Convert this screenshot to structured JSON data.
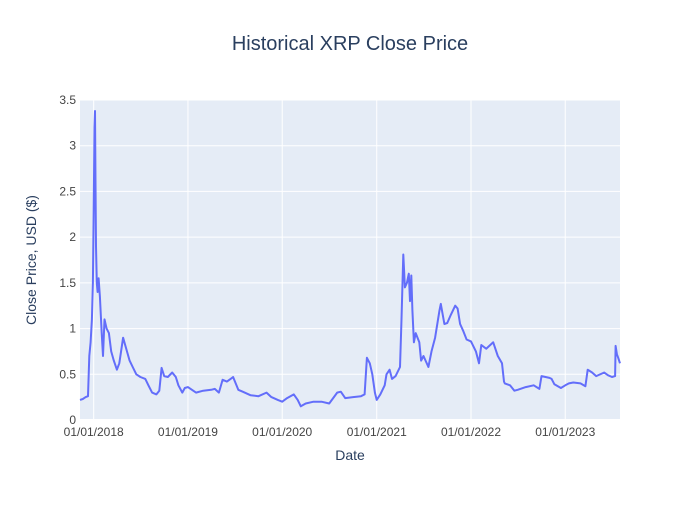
{
  "chart_data": {
    "type": "line",
    "title": "Historical XRP Close Price",
    "xlabel": "Date",
    "ylabel": "Close Price, USD ($)",
    "xlim": [
      "2017-11-09",
      "2023-08-01"
    ],
    "ylim": [
      0,
      3.5
    ],
    "x_ticks": [
      "01/01/2018",
      "01/01/2019",
      "01/01/2020",
      "01/01/2021",
      "01/01/2022",
      "01/01/2023"
    ],
    "x_tick_dates": [
      "2018-01-01",
      "2019-01-01",
      "2020-01-01",
      "2021-01-01",
      "2022-01-01",
      "2023-01-01"
    ],
    "y_ticks": [
      0,
      0.5,
      1,
      1.5,
      2,
      2.5,
      3,
      3.5
    ],
    "y_tick_labels": [
      "0",
      "0.5",
      "1",
      "1.5",
      "2",
      "2.5",
      "3",
      "3.5"
    ],
    "grid": true,
    "legend": "none",
    "colors": {
      "line": "#636efa",
      "plot_bg": "#e5ecf6",
      "grid": "#ffffff",
      "text": "#2a3f5f",
      "tick_text": "#444444"
    },
    "series": [
      {
        "x": [
          "2017-11-09",
          "2017-11-20",
          "2017-12-01",
          "2017-12-10",
          "2017-12-15",
          "2017-12-20",
          "2017-12-25",
          "2017-12-29",
          "2018-01-01",
          "2018-01-04",
          "2018-01-06",
          "2018-01-08",
          "2018-01-10",
          "2018-01-13",
          "2018-01-16",
          "2018-01-20",
          "2018-01-25",
          "2018-02-01",
          "2018-02-06",
          "2018-02-12",
          "2018-02-20",
          "2018-03-01",
          "2018-03-10",
          "2018-03-20",
          "2018-04-01",
          "2018-04-10",
          "2018-04-25",
          "2018-05-05",
          "2018-05-20",
          "2018-06-01",
          "2018-06-15",
          "2018-07-01",
          "2018-07-20",
          "2018-08-01",
          "2018-08-15",
          "2018-09-01",
          "2018-09-12",
          "2018-09-21",
          "2018-10-01",
          "2018-10-15",
          "2018-11-01",
          "2018-11-15",
          "2018-11-25",
          "2018-12-10",
          "2018-12-20",
          "2019-01-01",
          "2019-02-01",
          "2019-03-01",
          "2019-04-01",
          "2019-04-15",
          "2019-05-01",
          "2019-05-15",
          "2019-06-01",
          "2019-06-15",
          "2019-06-25",
          "2019-07-15",
          "2019-08-01",
          "2019-09-01",
          "2019-10-01",
          "2019-11-01",
          "2019-11-20",
          "2019-12-15",
          "2020-01-01",
          "2020-01-20",
          "2020-02-15",
          "2020-03-01",
          "2020-03-13",
          "2020-04-01",
          "2020-05-01",
          "2020-06-01",
          "2020-07-01",
          "2020-08-01",
          "2020-08-15",
          "2020-09-01",
          "2020-10-01",
          "2020-11-01",
          "2020-11-15",
          "2020-11-24",
          "2020-12-05",
          "2020-12-15",
          "2020-12-25",
          "2021-01-01",
          "2021-01-15",
          "2021-02-01",
          "2021-02-08",
          "2021-02-20",
          "2021-03-01",
          "2021-03-15",
          "2021-04-01",
          "2021-04-07",
          "2021-04-14",
          "2021-04-20",
          "2021-04-28",
          "2021-05-05",
          "2021-05-10",
          "2021-05-15",
          "2021-05-19",
          "2021-05-25",
          "2021-06-01",
          "2021-06-15",
          "2021-06-22",
          "2021-07-01",
          "2021-07-20",
          "2021-08-01",
          "2021-08-15",
          "2021-09-01",
          "2021-09-06",
          "2021-09-20",
          "2021-10-01",
          "2021-10-15",
          "2021-11-01",
          "2021-11-10",
          "2021-11-20",
          "2021-12-01",
          "2021-12-15",
          "2022-01-01",
          "2022-01-20",
          "2022-02-01",
          "2022-02-10",
          "2022-03-01",
          "2022-03-28",
          "2022-04-15",
          "2022-05-01",
          "2022-05-09",
          "2022-05-12",
          "2022-06-01",
          "2022-06-18",
          "2022-07-01",
          "2022-08-01",
          "2022-09-01",
          "2022-09-23",
          "2022-10-01",
          "2022-11-01",
          "2022-11-09",
          "2022-11-20",
          "2022-12-15",
          "2023-01-01",
          "2023-01-15",
          "2023-02-01",
          "2023-03-01",
          "2023-03-20",
          "2023-03-29",
          "2023-04-15",
          "2023-05-01",
          "2023-06-01",
          "2023-06-15",
          "2023-07-01",
          "2023-07-13",
          "2023-07-15",
          "2023-07-20",
          "2023-07-25",
          "2023-08-01"
        ],
        "y": [
          0.22,
          0.23,
          0.25,
          0.26,
          0.7,
          0.85,
          1.1,
          1.5,
          2.3,
          3.2,
          3.38,
          2.6,
          1.9,
          1.5,
          1.4,
          1.55,
          1.35,
          0.95,
          0.7,
          1.1,
          1.0,
          0.95,
          0.75,
          0.65,
          0.55,
          0.62,
          0.9,
          0.8,
          0.65,
          0.58,
          0.5,
          0.47,
          0.45,
          0.38,
          0.3,
          0.28,
          0.32,
          0.57,
          0.48,
          0.47,
          0.52,
          0.47,
          0.38,
          0.3,
          0.35,
          0.36,
          0.3,
          0.32,
          0.33,
          0.34,
          0.3,
          0.44,
          0.42,
          0.45,
          0.47,
          0.33,
          0.31,
          0.27,
          0.26,
          0.3,
          0.25,
          0.22,
          0.2,
          0.24,
          0.28,
          0.22,
          0.15,
          0.18,
          0.2,
          0.2,
          0.18,
          0.3,
          0.31,
          0.24,
          0.25,
          0.26,
          0.28,
          0.68,
          0.62,
          0.5,
          0.3,
          0.22,
          0.28,
          0.38,
          0.5,
          0.55,
          0.45,
          0.48,
          0.58,
          1.1,
          1.81,
          1.45,
          1.5,
          1.6,
          1.3,
          1.58,
          1.2,
          0.85,
          0.95,
          0.85,
          0.65,
          0.7,
          0.58,
          0.75,
          0.9,
          1.2,
          1.27,
          1.05,
          1.06,
          1.15,
          1.25,
          1.22,
          1.05,
          0.98,
          0.88,
          0.86,
          0.75,
          0.62,
          0.82,
          0.78,
          0.85,
          0.7,
          0.62,
          0.42,
          0.4,
          0.38,
          0.32,
          0.33,
          0.36,
          0.38,
          0.34,
          0.48,
          0.46,
          0.45,
          0.39,
          0.35,
          0.38,
          0.4,
          0.41,
          0.4,
          0.37,
          0.55,
          0.52,
          0.48,
          0.52,
          0.49,
          0.47,
          0.48,
          0.81,
          0.72,
          0.68,
          0.62
        ]
      }
    ]
  }
}
